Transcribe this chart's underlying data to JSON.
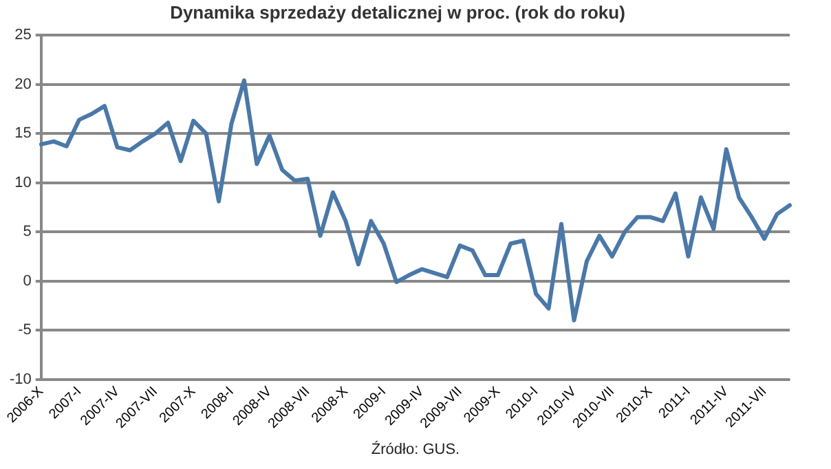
{
  "chart_data": {
    "type": "line",
    "title": "Dynamika sprzedaży detalicznej w proc. (rok do roku)",
    "categories": [
      "2006-X",
      null,
      null,
      "2007-I",
      null,
      null,
      "2007-IV",
      null,
      null,
      "2007-VII",
      null,
      null,
      "2007-X",
      null,
      null,
      "2008-I",
      null,
      null,
      "2008-IV",
      null,
      null,
      "2008-VII",
      null,
      null,
      "2008-X",
      null,
      null,
      "2009-I",
      null,
      null,
      "2009-IV",
      null,
      null,
      "2009-VII",
      null,
      null,
      "2009-X",
      null,
      null,
      "2010-I",
      null,
      null,
      "2010-IV",
      null,
      null,
      "2010-VII",
      null,
      null,
      "2010-X",
      null,
      null,
      "2011-I",
      null,
      null,
      "2011-IV",
      null,
      null,
      "2011-VII",
      null,
      null
    ],
    "series": [
      {
        "color": "#4a78a8",
        "values": [
          13.9,
          14.2,
          13.7,
          16.4,
          17.0,
          17.8,
          13.6,
          13.3,
          14.2,
          15.0,
          16.1,
          12.2,
          16.3,
          15.0,
          8.1,
          16.0,
          20.4,
          11.9,
          14.8,
          11.3,
          10.2,
          10.4,
          4.6,
          9.0,
          6.1,
          1.7,
          6.1,
          3.8,
          -0.1,
          0.6,
          1.2,
          0.8,
          0.4,
          3.6,
          3.1,
          0.6,
          0.6,
          3.8,
          4.1,
          -1.3,
          -2.8,
          5.8,
          -4.0,
          2.0,
          4.6,
          2.5,
          5.0,
          6.5,
          6.5,
          6.1,
          8.9,
          2.5,
          8.5,
          5.3,
          13.4,
          8.5,
          6.5,
          4.3,
          6.8,
          7.7
        ]
      }
    ],
    "ylim": [
      -10,
      25
    ],
    "yticks": [
      -10,
      -5,
      0,
      5,
      10,
      15,
      20,
      25
    ],
    "grid": "y",
    "legend": false,
    "marker": "none",
    "line_style": "solid",
    "annotations": [
      "Źródło: GUS."
    ]
  }
}
